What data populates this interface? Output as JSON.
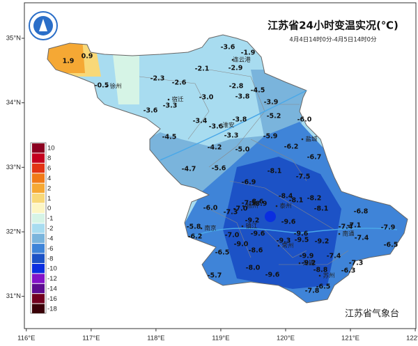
{
  "title": "江苏省24小时变温实况(℃)",
  "subtitle": "4月4日14时0分-4月5日14时0分",
  "footer": "江苏省气象台",
  "map": {
    "xlim": [
      115.97,
      122.01
    ],
    "ylim": [
      30.5,
      35.55
    ],
    "xticks": [
      {
        "value": 116,
        "label": "116°E"
      },
      {
        "value": 117,
        "label": "117°E"
      },
      {
        "value": 118,
        "label": "118°E"
      },
      {
        "value": 119,
        "label": "119°E"
      },
      {
        "value": 120,
        "label": "120°E"
      },
      {
        "value": 121,
        "label": "121°E"
      },
      {
        "value": 122,
        "label": "122°E"
      }
    ],
    "yticks": [
      {
        "value": 31,
        "label": "31°N"
      },
      {
        "value": 32,
        "label": "32°N"
      },
      {
        "value": 33,
        "label": "33°N"
      },
      {
        "value": 34,
        "label": "34°N"
      },
      {
        "value": 35,
        "label": "35°N"
      }
    ]
  },
  "legend": {
    "labels": [
      10,
      8,
      6,
      4,
      2,
      1,
      0,
      -1,
      -2,
      -4,
      -6,
      -8,
      -10,
      -12,
      -14,
      -16,
      -18
    ],
    "colors": [
      "#8b0020",
      "#c4001e",
      "#e23414",
      "#f07a18",
      "#f5a834",
      "#f8d878",
      "#fdf6c4",
      "#d6f4e6",
      "#a8dcf0",
      "#7ab4dc",
      "#3f84d8",
      "#1c52c6",
      "#0a2ee0",
      "#8412c8",
      "#5c0c90",
      "#72001e",
      "#3a0008"
    ]
  },
  "cities": [
    "连云港",
    "徐州",
    "宿迁",
    "淮安",
    "盐城",
    "扬州",
    "泰州",
    "南京",
    "镇江",
    "常州",
    "南通",
    "无锡",
    "苏州"
  ],
  "stations": [
    "1.9",
    "0.9",
    "-0.5",
    "-3.6",
    "-1.9",
    "-2.9",
    "-2.1",
    "-2.3",
    "-2.6",
    "-2.8",
    "-4.5",
    "-3.0",
    "-3.8",
    "-3.3",
    "-3.9",
    "-3.6",
    "-5.2",
    "-3.8",
    "-3.4",
    "-3.6",
    "-6.0",
    "-4.5",
    "-3.3",
    "-5.9",
    "-4.2",
    "-5.0",
    "-6.2",
    "-6.7",
    "-4.7",
    "-5.6",
    "-8.1",
    "-7.5",
    "-6.9",
    "-8.4",
    "-8.1",
    "-8.2",
    "-7.5",
    "-8.6",
    "-8.9",
    "-7.0",
    "-7.3",
    "-6.0",
    "-8.1",
    "-6.8",
    "-9.2",
    "-9.6",
    "-7.4",
    "-7.1",
    "-7.9",
    "-5.8",
    "-6.2",
    "-7.0",
    "-9.6",
    "-9.6",
    "-9.5",
    "-9.2",
    "-7.4",
    "-6.5",
    "-9.0",
    "-9.3",
    "-8.6",
    "-6.5",
    "-7.4",
    "-9.9",
    "-9.2",
    "-7.3",
    "-8.0",
    "-8.8",
    "-6.3",
    "-5.7",
    "-9.6",
    "-6.5",
    "-7.8"
  ]
}
